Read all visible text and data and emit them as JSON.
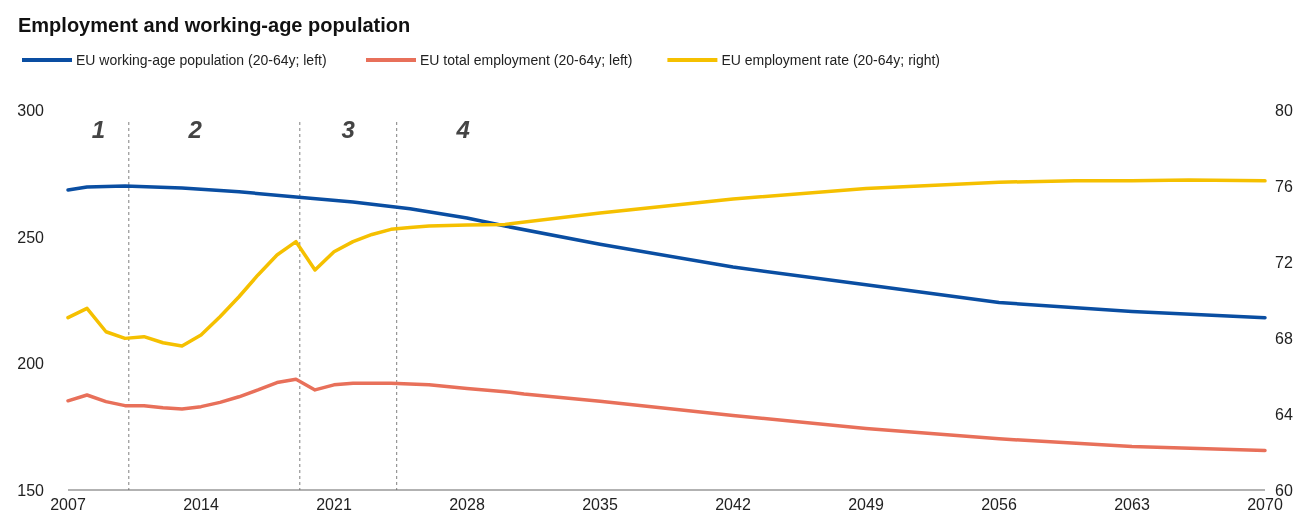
{
  "chart_data": {
    "type": "line",
    "title": "Employment and working-age population",
    "xlim": [
      2007,
      2070
    ],
    "xticks": [
      2007,
      2014,
      2021,
      2028,
      2035,
      2042,
      2049,
      2056,
      2063,
      2070
    ],
    "ylim": [
      150,
      300
    ],
    "yticks": [
      150,
      200,
      250,
      300
    ],
    "y2lim": [
      60,
      80
    ],
    "y2ticks": [
      60,
      64,
      68,
      72,
      76,
      80
    ],
    "legend": "top",
    "grid": false,
    "line_style": "solid",
    "ref_lines": [
      {
        "axis": "x",
        "value": 2010.2,
        "line_style": "dashed",
        "color": "#7f7f7f"
      },
      {
        "axis": "x",
        "value": 2019.2,
        "line_style": "dashed",
        "color": "#7f7f7f"
      },
      {
        "axis": "x",
        "value": 2024.3,
        "line_style": "dashed",
        "color": "#7f7f7f"
      }
    ],
    "annotations": [
      "1",
      "2",
      "3",
      "4"
    ],
    "series": [
      {
        "name": "EU working-age population (20-64y; left)",
        "color": "#0a4ea2",
        "x": [
          2007,
          2008,
          2010,
          2013,
          2016,
          2019,
          2022,
          2025,
          2028,
          2030,
          2035,
          2042,
          2049,
          2056,
          2063,
          2070
        ],
        "values": [
          268.4,
          269.6,
          270,
          269.2,
          267.7,
          265.7,
          263.7,
          261,
          257.4,
          254.2,
          247,
          238,
          231,
          224,
          220.5,
          218
        ]
      },
      {
        "name": "EU total employment (20-64y; left)",
        "color": "#e8705a",
        "x": [
          2007,
          2008,
          2009,
          2010,
          2011,
          2012,
          2013,
          2014,
          2015,
          2016,
          2017,
          2018,
          2019,
          2020,
          2021,
          2022,
          2023,
          2024,
          2025,
          2026,
          2028,
          2030,
          2031,
          2035,
          2042,
          2049,
          2056,
          2063,
          2070
        ],
        "values": [
          185.2,
          187.5,
          184.9,
          183.3,
          183.3,
          182.5,
          182,
          182.9,
          184.6,
          186.8,
          189.5,
          192.4,
          193.7,
          189.5,
          191.5,
          192.1,
          192.1,
          192.1,
          191.8,
          191.5,
          190.1,
          188.8,
          187.9,
          185,
          179.4,
          174.3,
          170.2,
          167.2,
          165.6
        ]
      },
      {
        "name": "EU employment rate (20-64y; right)",
        "color": "#f5c000",
        "axis": "y2",
        "x": [
          2007,
          2008,
          2009,
          2010,
          2011,
          2012,
          2013,
          2014,
          2015,
          2016,
          2017,
          2018,
          2019,
          2020,
          2021,
          2022,
          2023,
          2024,
          2025,
          2026,
          2028,
          2030,
          2035,
          2042,
          2049,
          2056,
          2060,
          2063,
          2066,
          2070
        ],
        "values": [
          69.07,
          69.56,
          68.33,
          67.98,
          68.07,
          67.75,
          67.58,
          68.16,
          69.12,
          70.17,
          71.32,
          72.37,
          73.07,
          71.58,
          72.54,
          73.07,
          73.45,
          73.72,
          73.82,
          73.89,
          73.95,
          73.98,
          74.58,
          75.32,
          75.87,
          76.2,
          76.27,
          76.27,
          76.32,
          76.27
        ]
      }
    ]
  }
}
